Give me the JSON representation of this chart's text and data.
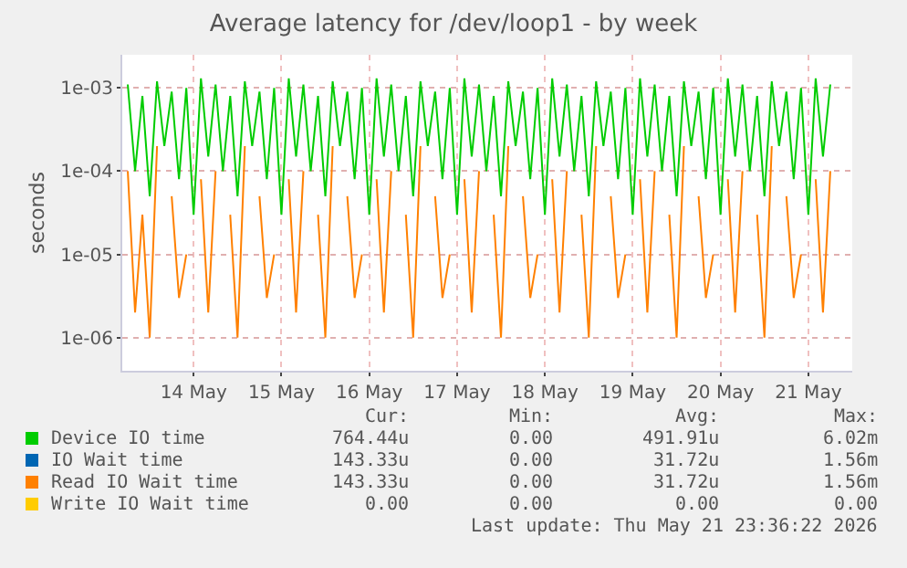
{
  "chart_data": {
    "type": "line",
    "title": "Average latency for /dev/loop1 - by week",
    "ylabel": "seconds",
    "x": [
      "2026-05-13T18:00",
      "2026-05-13T20:00",
      "2026-05-13T22:00",
      "2026-05-14T00:00",
      "2026-05-14T02:00",
      "2026-05-14T04:00",
      "2026-05-14T06:00",
      "2026-05-14T08:00",
      "2026-05-14T10:00",
      "2026-05-14T12:00",
      "2026-05-14T14:00",
      "2026-05-14T16:00",
      "2026-05-14T18:00",
      "2026-05-14T20:00",
      "2026-05-14T22:00",
      "2026-05-15T00:00",
      "2026-05-15T02:00",
      "2026-05-15T04:00",
      "2026-05-15T06:00",
      "2026-05-15T08:00",
      "2026-05-15T10:00",
      "2026-05-15T12:00",
      "2026-05-15T14:00",
      "2026-05-15T16:00",
      "2026-05-15T18:00",
      "2026-05-15T20:00",
      "2026-05-15T22:00",
      "2026-05-16T00:00",
      "2026-05-16T02:00",
      "2026-05-16T04:00",
      "2026-05-16T06:00",
      "2026-05-16T08:00",
      "2026-05-16T10:00",
      "2026-05-16T12:00",
      "2026-05-16T14:00",
      "2026-05-16T16:00",
      "2026-05-16T18:00",
      "2026-05-16T20:00",
      "2026-05-16T22:00",
      "2026-05-17T00:00",
      "2026-05-17T02:00",
      "2026-05-17T04:00",
      "2026-05-17T06:00",
      "2026-05-17T08:00",
      "2026-05-17T10:00",
      "2026-05-17T12:00",
      "2026-05-17T14:00",
      "2026-05-17T16:00",
      "2026-05-17T18:00",
      "2026-05-17T20:00",
      "2026-05-17T22:00",
      "2026-05-18T00:00",
      "2026-05-18T02:00",
      "2026-05-18T04:00",
      "2026-05-18T06:00",
      "2026-05-18T08:00",
      "2026-05-18T10:00",
      "2026-05-18T12:00",
      "2026-05-18T14:00",
      "2026-05-18T16:00",
      "2026-05-18T18:00",
      "2026-05-18T20:00",
      "2026-05-18T22:00",
      "2026-05-19T00:00",
      "2026-05-19T02:00",
      "2026-05-19T04:00",
      "2026-05-19T06:00",
      "2026-05-19T08:00",
      "2026-05-19T10:00",
      "2026-05-19T12:00",
      "2026-05-19T14:00",
      "2026-05-19T16:00",
      "2026-05-19T18:00",
      "2026-05-19T20:00",
      "2026-05-19T22:00",
      "2026-05-20T00:00",
      "2026-05-20T02:00",
      "2026-05-20T04:00",
      "2026-05-20T06:00",
      "2026-05-20T08:00",
      "2026-05-20T10:00",
      "2026-05-20T12:00",
      "2026-05-20T14:00",
      "2026-05-20T16:00",
      "2026-05-20T18:00",
      "2026-05-20T20:00",
      "2026-05-20T22:00",
      "2026-05-21T00:00",
      "2026-05-21T02:00",
      "2026-05-21T04:00",
      "2026-05-21T06:00",
      "2026-05-21T08:00",
      "2026-05-21T10:00",
      "2026-05-21T12:00",
      "2026-05-21T14:00",
      "2026-05-21T16:00",
      "2026-05-21T18:00"
    ],
    "series": [
      {
        "name": "Device IO time",
        "color": "#00cc00",
        "values": [
          0.0011,
          0.0001,
          0.0008,
          5e-05,
          0.0012,
          0.0002,
          0.0009,
          8e-05,
          0.001,
          3e-05,
          0.0013,
          0.00015,
          0.0011,
          0.0001,
          0.0008,
          5e-05,
          0.0012,
          0.0002,
          0.0009,
          8e-05,
          0.001,
          3e-05,
          0.0013,
          0.00015,
          0.0011,
          0.0001,
          0.0008,
          5e-05,
          0.0012,
          0.0002,
          0.0009,
          8e-05,
          0.001,
          3e-05,
          0.0013,
          0.00015,
          0.0011,
          0.0001,
          0.0008,
          5e-05,
          0.0012,
          0.0002,
          0.0009,
          8e-05,
          0.001,
          3e-05,
          0.0013,
          0.00015,
          0.0011,
          0.0001,
          0.0008,
          5e-05,
          0.0012,
          0.0002,
          0.0009,
          8e-05,
          0.001,
          3e-05,
          0.0013,
          0.00015,
          0.0011,
          0.0001,
          0.0008,
          5e-05,
          0.0012,
          0.0002,
          0.0009,
          8e-05,
          0.001,
          3e-05,
          0.0013,
          0.00015,
          0.0011,
          0.0001,
          0.0008,
          5e-05,
          0.0012,
          0.0002,
          0.0009,
          8e-05,
          0.001,
          3e-05,
          0.0013,
          0.00015,
          0.0011,
          0.0001,
          0.0008,
          5e-05,
          0.0012,
          0.0002,
          0.0009,
          8e-05,
          0.001,
          3e-05,
          0.0013,
          0.00015,
          0.0011
        ]
      },
      {
        "name": "IO Wait time",
        "color": "#0066b3",
        "values": [
          null,
          null,
          null,
          null,
          null,
          null,
          null,
          null,
          null,
          null,
          null,
          null,
          null,
          null,
          null,
          null,
          null,
          null,
          null,
          null,
          null,
          null,
          null,
          null,
          null,
          null,
          null,
          null,
          null,
          null,
          null,
          null,
          null,
          null,
          null,
          null,
          null,
          null,
          null,
          null,
          null,
          null,
          null,
          null,
          null,
          null,
          null,
          null,
          null,
          null,
          null,
          null,
          null,
          null,
          null,
          null,
          null,
          null,
          null,
          null,
          null,
          null,
          null,
          null,
          null,
          null,
          null,
          null,
          null,
          null,
          null,
          null,
          null,
          null,
          null,
          null,
          null,
          null,
          null,
          null,
          null,
          null,
          null,
          null,
          null,
          null,
          null,
          null,
          null,
          null,
          null,
          null,
          null,
          null,
          null,
          null,
          null
        ]
      },
      {
        "name": "Read IO Wait time",
        "color": "#ff8000",
        "values": [
          0.0001,
          2e-06,
          3e-05,
          1e-06,
          0.0002,
          null,
          5e-05,
          3e-06,
          1e-05,
          null,
          8e-05,
          2e-06,
          0.0001,
          null,
          3e-05,
          1e-06,
          0.0002,
          null,
          5e-05,
          3e-06,
          1e-05,
          null,
          8e-05,
          2e-06,
          0.0001,
          null,
          3e-05,
          1e-06,
          0.0002,
          null,
          5e-05,
          3e-06,
          1e-05,
          null,
          8e-05,
          2e-06,
          0.0001,
          null,
          3e-05,
          1e-06,
          0.0002,
          null,
          5e-05,
          3e-06,
          1e-05,
          null,
          8e-05,
          2e-06,
          0.0001,
          null,
          3e-05,
          1e-06,
          0.0002,
          null,
          5e-05,
          3e-06,
          1e-05,
          null,
          8e-05,
          2e-06,
          0.0001,
          null,
          3e-05,
          1e-06,
          0.0002,
          null,
          5e-05,
          3e-06,
          1e-05,
          null,
          8e-05,
          2e-06,
          0.0001,
          null,
          3e-05,
          1e-06,
          0.0002,
          null,
          5e-05,
          3e-06,
          1e-05,
          null,
          8e-05,
          2e-06,
          0.0001,
          null,
          3e-05,
          1e-06,
          0.0002,
          null,
          5e-05,
          3e-06,
          1e-05,
          null,
          8e-05,
          2e-06,
          0.0001
        ]
      },
      {
        "name": "Write IO Wait time",
        "color": "#ffcc00",
        "values": [
          null,
          null,
          null,
          null,
          null,
          null,
          null,
          null,
          null,
          null,
          null,
          null,
          null,
          null,
          null,
          null,
          null,
          null,
          null,
          null,
          null,
          null,
          null,
          null,
          null,
          null,
          null,
          null,
          null,
          null,
          null,
          null,
          null,
          null,
          null,
          null,
          null,
          null,
          null,
          null,
          null,
          null,
          null,
          null,
          null,
          null,
          null,
          null,
          null,
          null,
          null,
          null,
          null,
          null,
          null,
          null,
          null,
          null,
          null,
          null,
          null,
          null,
          null,
          null,
          null,
          null,
          null,
          null,
          null,
          null,
          null,
          null,
          null,
          null,
          null,
          null,
          null,
          null,
          null,
          null,
          null,
          null,
          null,
          null,
          null,
          null,
          null,
          null,
          null,
          null,
          null,
          null,
          null,
          null,
          null,
          null,
          null
        ]
      }
    ],
    "log": "y",
    "ylim": [
      4e-07,
      0.0025
    ],
    "yticks": [
      {
        "value": 0.001,
        "label": "1e-03"
      },
      {
        "value": 0.0001,
        "label": "1e-04"
      },
      {
        "value": 1e-05,
        "label": "1e-05"
      },
      {
        "value": 1e-06,
        "label": "1e-06"
      }
    ],
    "xlim": [
      "2026-05-13T16:30",
      "2026-05-22T00:00"
    ],
    "xticks": [
      {
        "value": "2026-05-14T12:00",
        "label": "14 May"
      },
      {
        "value": "2026-05-15T12:00",
        "label": "15 May"
      },
      {
        "value": "2026-05-16T12:00",
        "label": "16 May"
      },
      {
        "value": "2026-05-17T12:00",
        "label": "17 May"
      },
      {
        "value": "2026-05-18T12:00",
        "label": "18 May"
      },
      {
        "value": "2026-05-19T12:00",
        "label": "19 May"
      },
      {
        "value": "2026-05-20T12:00",
        "label": "20 May"
      },
      {
        "value": "2026-05-21T12:00",
        "label": "21 May"
      }
    ],
    "grid": true,
    "legend": "bottom",
    "line_style": "solid",
    "annotations": [
      "Cur:",
      "Min:",
      "Avg:",
      "Max:",
      "764.44u",
      "0.00",
      "491.91u",
      "6.02m",
      "143.33u",
      "0.00",
      "31.72u",
      "1.56m",
      "143.33u",
      "0.00",
      "31.72u",
      "1.56m",
      "0.00",
      "0.00",
      "0.00",
      "0.00",
      "Last update: Thu May 21 23:36:22 2026"
    ]
  }
}
